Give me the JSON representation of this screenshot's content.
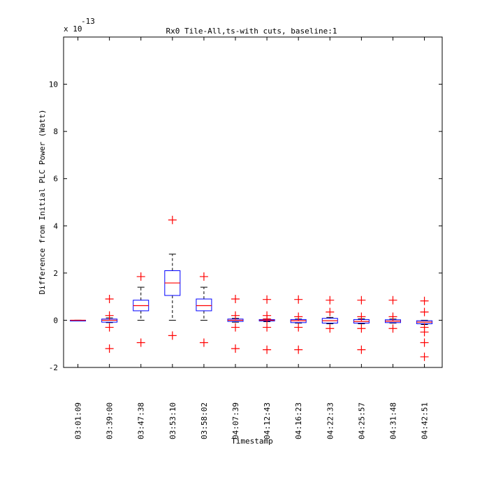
{
  "chart_data": {
    "type": "boxplot",
    "title": "Rx0 Tile-All,ts-with cuts, baseline:1",
    "xlabel": "Timestamp",
    "ylabel": "Difference from Initial PLC Power (Watt)",
    "y_multiplier_label": {
      "base": "x 10",
      "exponent": "-13"
    },
    "ylim": [
      -2,
      12
    ],
    "yticks": [
      -2,
      0,
      2,
      4,
      6,
      8,
      10
    ],
    "grid": false,
    "colors": {
      "box": "#0000ff",
      "median": "#ff0000",
      "whisker": "#000000",
      "outlier": "#ff0000",
      "axes": "#000000"
    },
    "categories": [
      "03:01:09",
      "03:39:00",
      "03:47:38",
      "03:53:10",
      "03:58:02",
      "04:07:39",
      "04:12:43",
      "04:16:23",
      "04:22:33",
      "04:25:57",
      "04:31:48",
      "04:42:51"
    ],
    "boxes": [
      {
        "q1": 0,
        "median": 0,
        "q3": 0,
        "whisker_low": 0,
        "whisker_high": 0,
        "outliers": []
      },
      {
        "q1": -0.08,
        "median": 0,
        "q3": 0.05,
        "whisker_low": -0.1,
        "whisker_high": 0.1,
        "outliers": [
          0.9,
          0.2,
          -0.3,
          -1.2
        ]
      },
      {
        "q1": 0.4,
        "median": 0.62,
        "q3": 0.85,
        "whisker_low": 0,
        "whisker_high": 1.4,
        "outliers": [
          1.85,
          -0.95
        ]
      },
      {
        "q1": 1.05,
        "median": 1.58,
        "q3": 2.1,
        "whisker_low": 0,
        "whisker_high": 2.8,
        "outliers": [
          4.25,
          -0.65
        ]
      },
      {
        "q1": 0.4,
        "median": 0.62,
        "q3": 0.9,
        "whisker_low": 0,
        "whisker_high": 1.4,
        "outliers": [
          1.85,
          -0.95
        ]
      },
      {
        "q1": -0.05,
        "median": 0,
        "q3": 0.05,
        "whisker_low": -0.08,
        "whisker_high": 0.08,
        "outliers": [
          0.9,
          0.2,
          -0.3,
          -1.2
        ]
      },
      {
        "q1": -0.03,
        "median": 0,
        "q3": 0.03,
        "whisker_low": -0.06,
        "whisker_high": 0.06,
        "outliers": [
          0.88,
          0.2,
          0.05,
          -0.3,
          -1.25
        ]
      },
      {
        "q1": -0.1,
        "median": -0.02,
        "q3": 0.03,
        "whisker_low": -0.12,
        "whisker_high": 0.05,
        "outliers": [
          0.88,
          0.15,
          -0.3,
          -1.25
        ]
      },
      {
        "q1": -0.12,
        "median": -0.02,
        "q3": 0.08,
        "whisker_low": -0.15,
        "whisker_high": 0.12,
        "outliers": [
          0.85,
          0.35,
          -0.35
        ]
      },
      {
        "q1": -0.12,
        "median": -0.05,
        "q3": 0.03,
        "whisker_low": -0.15,
        "whisker_high": 0.06,
        "outliers": [
          0.85,
          0.15,
          -0.35,
          -1.25
        ]
      },
      {
        "q1": -0.1,
        "median": -0.04,
        "q3": 0.02,
        "whisker_low": -0.12,
        "whisker_high": 0.05,
        "outliers": [
          0.85,
          0.15,
          -0.35
        ]
      },
      {
        "q1": -0.15,
        "median": -0.08,
        "q3": -0.02,
        "whisker_low": -0.18,
        "whisker_high": 0.0,
        "outliers": [
          0.82,
          0.35,
          -0.3,
          -0.5,
          -0.95,
          -1.55
        ]
      }
    ]
  }
}
